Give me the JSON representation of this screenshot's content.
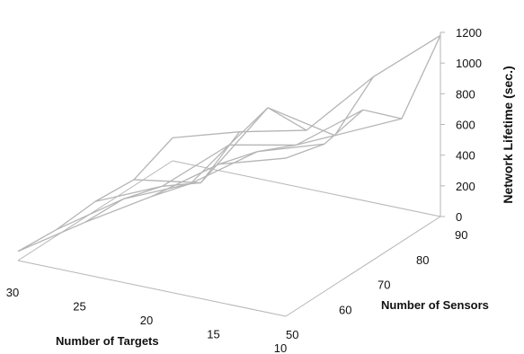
{
  "chart_data": {
    "type": "surface-3d",
    "title": "",
    "x_axis": {
      "label": "Number of Targets",
      "ticks": [
        "30",
        "25",
        "20",
        "15",
        "10"
      ]
    },
    "y_axis": {
      "label": "Number of Sensors",
      "ticks": [
        "50",
        "60",
        "70",
        "80",
        "90"
      ]
    },
    "z_axis": {
      "label": "Network Lifetime (sec.)",
      "ticks": [
        "0",
        "200",
        "400",
        "600",
        "800",
        "1000",
        "1200"
      ],
      "zlim": [
        0,
        1200
      ]
    },
    "grid": false,
    "surface_color": "#b5b5b5",
    "x": [
      30,
      25,
      20,
      15,
      10
    ],
    "y": [
      50,
      60,
      70,
      80,
      90
    ],
    "z": [
      [
        60,
        340,
        600,
        900,
        1030
      ],
      [
        40,
        330,
        520,
        820,
        960
      ],
      [
        60,
        250,
        610,
        700,
        1020
      ],
      [
        40,
        110,
        690,
        600,
        800
      ],
      [
        150,
        280,
        380,
        820,
        1180
      ]
    ]
  }
}
